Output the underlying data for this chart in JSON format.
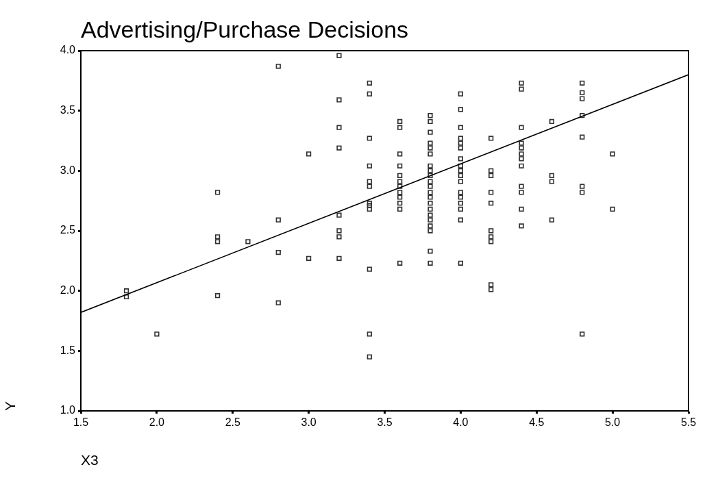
{
  "chart_data": {
    "type": "scatter",
    "title": "Advertising/Purchase Decisions",
    "xlabel": "X3",
    "ylabel": "Y",
    "marker": "square",
    "grid": false,
    "legend": false,
    "xlim": [
      1.5,
      5.5
    ],
    "xticks": [
      {
        "value": 1.5,
        "label": "1.5"
      },
      {
        "value": 2,
        "label": "2.0"
      },
      {
        "value": 2.5,
        "label": "2.5"
      },
      {
        "value": 3,
        "label": "3.0"
      },
      {
        "value": 3.5,
        "label": "3.5"
      },
      {
        "value": 4,
        "label": "4.0"
      },
      {
        "value": 4.5,
        "label": "4.5"
      },
      {
        "value": 5,
        "label": "5.0"
      },
      {
        "value": 5.5,
        "label": "5.5"
      }
    ],
    "ylim": [
      1,
      4
    ],
    "yticks": [
      {
        "value": 1,
        "label": "1.0"
      },
      {
        "value": 1.5,
        "label": "1.5"
      },
      {
        "value": 2,
        "label": "2.0"
      },
      {
        "value": 2.5,
        "label": "2.5"
      },
      {
        "value": 3,
        "label": "3.0"
      },
      {
        "value": 3.5,
        "label": "3.5"
      },
      {
        "value": 4,
        "label": "4.0"
      }
    ],
    "series": [
      {
        "color": "#333333",
        "x": [
          1.8,
          1.8,
          2.0,
          2.4,
          2.4,
          2.4,
          2.4,
          2.6,
          2.8,
          2.8,
          2.8,
          2.8,
          3.0,
          3.0,
          3.2,
          3.2,
          3.2,
          3.2,
          3.2,
          3.2,
          3.2,
          3.2,
          3.4,
          3.4,
          3.4,
          3.4,
          3.4,
          3.4,
          3.4,
          3.4,
          3.4,
          3.4,
          3.4,
          3.4,
          3.6,
          3.6,
          3.6,
          3.6,
          3.6,
          3.6,
          3.6,
          3.6,
          3.6,
          3.6,
          3.6,
          3.6,
          3.8,
          3.8,
          3.8,
          3.8,
          3.8,
          3.8,
          3.8,
          3.8,
          3.8,
          3.8,
          3.8,
          3.8,
          3.8,
          3.8,
          3.8,
          3.8,
          3.8,
          3.8,
          3.8,
          3.8,
          3.8,
          4.0,
          4.0,
          4.0,
          4.0,
          4.0,
          4.0,
          4.0,
          4.0,
          4.0,
          4.0,
          4.0,
          4.0,
          4.0,
          4.0,
          4.0,
          4.0,
          4.0,
          4.2,
          4.2,
          4.2,
          4.2,
          4.2,
          4.2,
          4.2,
          4.2,
          4.2,
          4.2,
          4.4,
          4.4,
          4.4,
          4.4,
          4.4,
          4.4,
          4.4,
          4.4,
          4.4,
          4.4,
          4.4,
          4.4,
          4.6,
          4.6,
          4.6,
          4.6,
          4.8,
          4.8,
          4.8,
          4.8,
          4.8,
          4.8,
          4.8,
          4.8,
          5.0,
          5.0
        ],
        "values": [
          2.0,
          1.95,
          1.64,
          2.82,
          2.45,
          2.41,
          1.96,
          2.41,
          3.87,
          2.59,
          2.32,
          1.9,
          3.14,
          2.27,
          3.96,
          3.59,
          3.36,
          3.19,
          2.63,
          2.5,
          2.45,
          2.27,
          3.73,
          3.64,
          3.27,
          3.04,
          2.91,
          2.87,
          2.73,
          2.71,
          2.68,
          2.18,
          1.64,
          1.45,
          3.41,
          3.36,
          3.14,
          3.04,
          2.96,
          2.91,
          2.87,
          2.82,
          2.78,
          2.73,
          2.68,
          2.23,
          3.46,
          3.41,
          3.32,
          3.23,
          3.19,
          3.14,
          3.04,
          3.0,
          2.96,
          2.91,
          2.87,
          2.82,
          2.78,
          2.73,
          2.68,
          2.63,
          2.59,
          2.54,
          2.5,
          2.33,
          2.23,
          3.64,
          3.51,
          3.36,
          3.27,
          3.23,
          3.19,
          3.1,
          3.04,
          3.0,
          2.96,
          2.91,
          2.82,
          2.78,
          2.73,
          2.68,
          2.59,
          2.23,
          3.27,
          3.0,
          2.96,
          2.82,
          2.73,
          2.5,
          2.45,
          2.41,
          2.05,
          2.01,
          3.73,
          3.68,
          3.36,
          3.23,
          3.19,
          3.14,
          3.1,
          3.04,
          2.87,
          2.82,
          2.68,
          2.54,
          3.41,
          2.96,
          2.91,
          2.59,
          3.73,
          3.65,
          3.6,
          3.46,
          3.28,
          2.87,
          2.82,
          1.64,
          3.14,
          2.68
        ]
      },
      {
        "type": "line",
        "color": "#000000",
        "marker": "none",
        "x": [
          1.5,
          5.5
        ],
        "values": [
          1.82,
          3.8
        ]
      }
    ]
  }
}
